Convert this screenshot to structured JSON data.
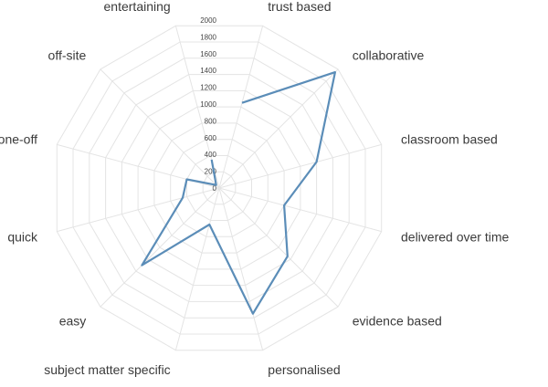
{
  "chart_data": {
    "type": "radar",
    "title": "",
    "categories": [
      "trust based",
      "collaborative",
      "classroom based",
      "delivered over time",
      "evidence based",
      "personalised",
      "subject matter specific",
      "easy",
      "quick",
      "one-off",
      "off-site",
      "entertaining"
    ],
    "series": [
      {
        "color": "#5b8db8",
        "values": [
          1050,
          1950,
          1200,
          800,
          1150,
          1550,
          450,
          1300,
          450,
          400,
          50,
          350
        ]
      }
    ],
    "rlim": [
      0,
      2000
    ],
    "ticks": [
      0,
      200,
      400,
      600,
      800,
      1000,
      1200,
      1400,
      1600,
      1800,
      2000
    ],
    "grid": true,
    "legend": "none"
  }
}
